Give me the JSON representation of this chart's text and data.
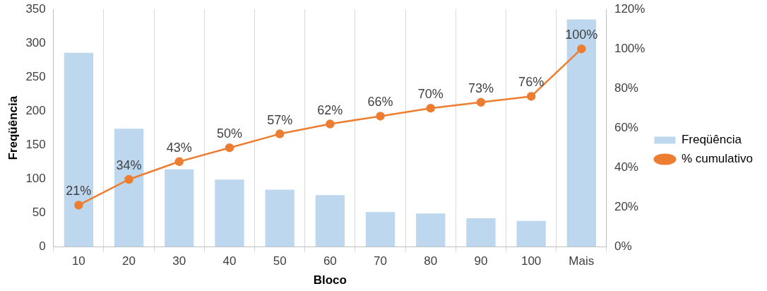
{
  "chart_data": {
    "type": "bar",
    "xlabel": "Bloco",
    "ylabel": "Freqüência",
    "categories": [
      "10",
      "20",
      "30",
      "40",
      "50",
      "60",
      "70",
      "80",
      "90",
      "100",
      "Mais"
    ],
    "series": [
      {
        "name": "Freqüência",
        "color": "#bdd7ee",
        "values": [
          286,
          174,
          114,
          99,
          84,
          76,
          51,
          49,
          42,
          38,
          335
        ]
      },
      {
        "name": "% cumulativo",
        "type": "line",
        "axis": "y2",
        "color": "#ed7d31",
        "marker": "circle",
        "values": [
          21,
          34,
          43,
          50,
          57,
          62,
          66,
          70,
          73,
          76,
          100
        ],
        "value_labels": [
          "21%",
          "34%",
          "43%",
          "50%",
          "57%",
          "62%",
          "66%",
          "70%",
          "73%",
          "76%",
          "100%"
        ]
      }
    ],
    "ylim": [
      0,
      350
    ],
    "yticks": [
      0,
      50,
      100,
      150,
      200,
      250,
      300,
      350
    ],
    "y2lim": [
      0,
      120
    ],
    "y2ticks": [
      {
        "value": 0,
        "label": "0%"
      },
      {
        "value": 20,
        "label": "20%"
      },
      {
        "value": 40,
        "label": "40%"
      },
      {
        "value": 60,
        "label": "60%"
      },
      {
        "value": 80,
        "label": "80%"
      },
      {
        "value": 100,
        "label": "100%"
      },
      {
        "value": 120,
        "label": "120%"
      }
    ],
    "grid": "x",
    "legend": "right"
  }
}
